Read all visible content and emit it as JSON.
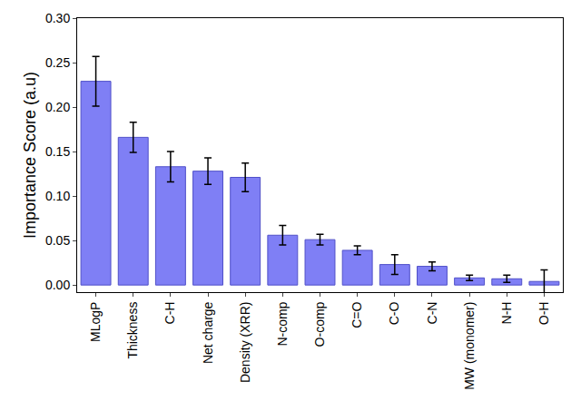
{
  "chart_data": {
    "type": "bar",
    "y_label": "Importance Score (a.u)",
    "categories": [
      "MLogP",
      "Thickness",
      "C-H",
      "Net charge",
      "Density (XRR)",
      "N-comp",
      "O-comp",
      "C=O",
      "C-O",
      "C-N",
      "MW (monomer)",
      "N-H",
      "O-H"
    ],
    "values": [
      0.229,
      0.166,
      0.133,
      0.128,
      0.121,
      0.056,
      0.051,
      0.039,
      0.023,
      0.021,
      0.008,
      0.007,
      0.004
    ],
    "errors": [
      0.028,
      0.017,
      0.017,
      0.015,
      0.016,
      0.011,
      0.006,
      0.005,
      0.011,
      0.005,
      0.003,
      0.004,
      0.013
    ],
    "color": "#7f7ff5",
    "ylim": [
      -0.008,
      0.3
    ],
    "yticks": [
      {
        "value": 0,
        "label": "0.00"
      },
      {
        "value": 0.05,
        "label": "0.05"
      },
      {
        "value": 0.1,
        "label": "0.10"
      },
      {
        "value": 0.15,
        "label": "0.15"
      },
      {
        "value": 0.2,
        "label": "0.20"
      },
      {
        "value": 0.25,
        "label": "0.25"
      },
      {
        "value": 0.3,
        "label": "0.30"
      }
    ],
    "grid": false
  }
}
